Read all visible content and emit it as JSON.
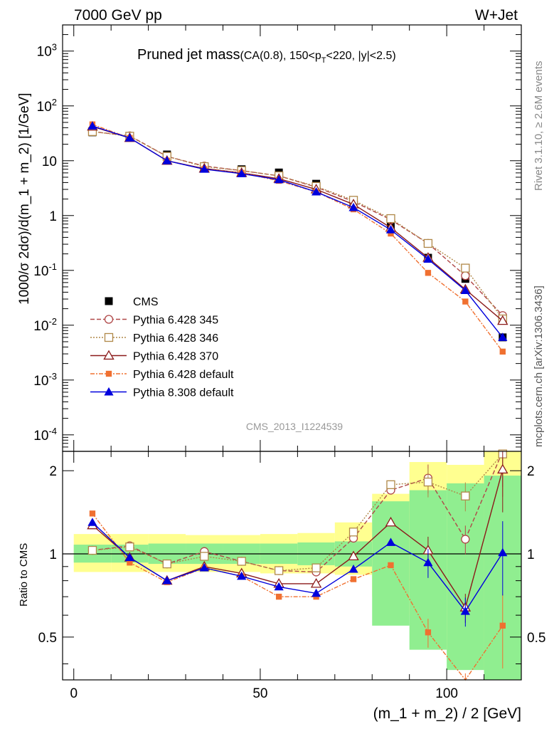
{
  "header": {
    "left": "7000 GeV pp",
    "right": "W+Jet"
  },
  "side": {
    "rivet": "Rivet 3.1.10, ≥ 2.6M events",
    "mcplots": "mcplots.cern.ch [arXiv:1306.3436]"
  },
  "chart_data": {
    "type": "line",
    "title_main": "Pruned jet mass",
    "title_sub": "(CA(0.8), 150<p",
    "title_sub_T": "T",
    "title_sub_tail": "<220, |y|<2.5)",
    "analysis_label": "CMS_2013_I1224539",
    "xlabel": "(m_1 + m_2) / 2 [GeV]",
    "ylabel": "1000/σ 2dσ)/d(m_1 + m_2) [1/GeV]",
    "ratio_ylabel": "Ratio to CMS",
    "xlim": [
      -3,
      120
    ],
    "ylim": [
      5e-05,
      3000
    ],
    "yscale": "log",
    "ratio_ylim": [
      0.35,
      2.35
    ],
    "ratio_yscale": "log",
    "x_ticks": [
      "0",
      "50",
      "100"
    ],
    "y_ticks": [
      "10^-4",
      "10^-3",
      "10^-2",
      "10^-1",
      "1",
      "10",
      "10^2",
      "10^3"
    ],
    "ratio_ticks": [
      "0.5",
      "1",
      "2"
    ],
    "legend_position": "bottom-left",
    "x": [
      5,
      15,
      25,
      35,
      45,
      55,
      65,
      75,
      85,
      95,
      105,
      115
    ],
    "bins": [
      [
        0,
        10
      ],
      [
        10,
        20
      ],
      [
        20,
        30
      ],
      [
        30,
        40
      ],
      [
        40,
        50
      ],
      [
        50,
        60
      ],
      [
        60,
        70
      ],
      [
        70,
        80
      ],
      [
        80,
        90
      ],
      [
        90,
        100
      ],
      [
        100,
        110
      ],
      [
        110,
        120
      ]
    ],
    "data": {
      "name": "CMS",
      "color": "#000000",
      "values": [
        33,
        27,
        13,
        7.8,
        7.0,
        6.1,
        3.8,
        1.6,
        0.65,
        0.17,
        0.07,
        0.006
      ]
    },
    "uncertainty_bands": {
      "stat_color": "#90ee90",
      "total_color": "#ffff90",
      "stat": [
        [
          0.93,
          1.08
        ],
        [
          0.93,
          1.08
        ],
        [
          0.92,
          1.09
        ],
        [
          0.92,
          1.09
        ],
        [
          0.92,
          1.09
        ],
        [
          0.92,
          1.09
        ],
        [
          0.91,
          1.1
        ],
        [
          0.9,
          1.11
        ],
        [
          0.55,
          1.55
        ],
        [
          0.45,
          1.7
        ],
        [
          0.38,
          1.8
        ],
        [
          0.35,
          1.92
        ]
      ],
      "total": [
        [
          0.86,
          1.18
        ],
        [
          0.86,
          1.18
        ],
        [
          0.86,
          1.18
        ],
        [
          0.86,
          1.17
        ],
        [
          0.86,
          1.17
        ],
        [
          0.85,
          1.18
        ],
        [
          0.85,
          1.19
        ],
        [
          0.84,
          1.3
        ],
        [
          0.7,
          1.65
        ],
        [
          0.6,
          2.15
        ],
        [
          0.45,
          2.1
        ],
        [
          0.35,
          2.35
        ]
      ]
    },
    "series": [
      {
        "name": "Pythia 6.428 345",
        "color": "#b04848",
        "dash": "6,3",
        "marker": "circle-open",
        "values": [
          34,
          28.5,
          12,
          8.0,
          6.6,
          5.3,
          3.3,
          1.8,
          0.84,
          0.31,
          0.08,
          0.015
        ],
        "ratio": [
          1.03,
          1.07,
          0.92,
          1.02,
          0.94,
          0.87,
          0.86,
          1.14,
          1.7,
          1.88,
          1.13,
          2.5
        ]
      },
      {
        "name": "Pythia 6.428 346",
        "color": "#b08848",
        "dash": "2,2",
        "marker": "square-open",
        "values": [
          34,
          28,
          12,
          7.8,
          6.6,
          5.3,
          3.4,
          1.9,
          0.88,
          0.31,
          0.11,
          0.013
        ],
        "ratio": [
          1.03,
          1.06,
          0.92,
          0.98,
          0.94,
          0.87,
          0.89,
          1.2,
          1.78,
          1.82,
          1.62,
          2.3
        ]
      },
      {
        "name": "Pythia 6.428 370",
        "color": "#8b1a1a",
        "dash": "",
        "marker": "triangle-open",
        "values": [
          42,
          26,
          10,
          7.2,
          6.0,
          4.7,
          3.0,
          1.6,
          0.6,
          0.17,
          0.045,
          0.012
        ],
        "ratio": [
          1.27,
          0.97,
          0.8,
          0.9,
          0.85,
          0.78,
          0.78,
          0.98,
          1.3,
          1.03,
          0.64,
          2.02
        ]
      },
      {
        "name": "Pythia 6.428 default",
        "color": "#f07030",
        "dash": "6,2,2,2",
        "marker": "square-filled",
        "values": [
          46,
          26,
          10,
          7.0,
          6.0,
          4.3,
          2.7,
          1.3,
          0.47,
          0.09,
          0.027,
          0.0033
        ],
        "ratio": [
          1.4,
          0.93,
          0.79,
          0.89,
          0.83,
          0.7,
          0.7,
          0.81,
          0.91,
          0.52,
          0.33,
          0.55
        ]
      },
      {
        "name": "Pythia 8.308 default",
        "color": "#0000dd",
        "dash": "",
        "marker": "triangle-filled",
        "values": [
          43,
          26,
          10,
          7.0,
          5.8,
          4.5,
          2.7,
          1.4,
          0.55,
          0.16,
          0.043,
          0.006
        ],
        "ratio": [
          1.3,
          0.97,
          0.8,
          0.89,
          0.83,
          0.76,
          0.72,
          0.88,
          1.1,
          0.93,
          0.62,
          1.01
        ]
      }
    ]
  }
}
